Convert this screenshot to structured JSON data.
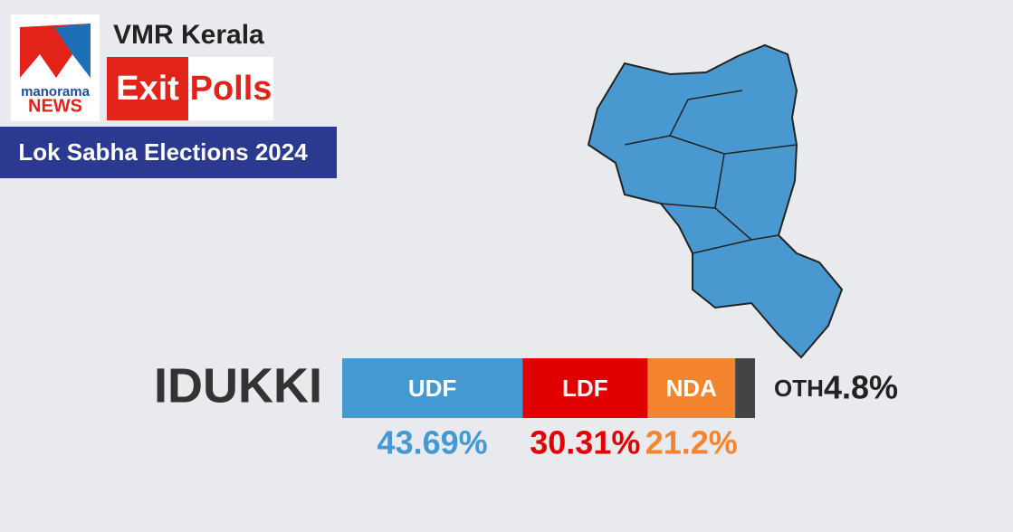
{
  "header": {
    "logo_top": "manorama",
    "logo_bottom": "NEWS",
    "channel": "VMR Kerala",
    "exit": "Exit",
    "polls": "Polls",
    "subtitle": "Lok Sabha Elections 2024"
  },
  "chart_data": {
    "type": "stacked-bar",
    "title": "IDUKKI",
    "series": [
      {
        "name": "UDF",
        "color": "#4499d3",
        "values": [
          43.69
        ],
        "value_labels": [
          "43.69%"
        ]
      },
      {
        "name": "LDF",
        "color": "#e00000",
        "values": [
          30.31
        ],
        "value_labels": [
          "30.31%"
        ]
      },
      {
        "name": "NDA",
        "color": "#f4852e",
        "values": [
          21.2
        ],
        "value_labels": [
          "21.2%"
        ]
      },
      {
        "name": "OTH",
        "color": "#444444",
        "values": [
          4.8
        ],
        "value_labels": [
          "4.8%"
        ]
      }
    ]
  }
}
